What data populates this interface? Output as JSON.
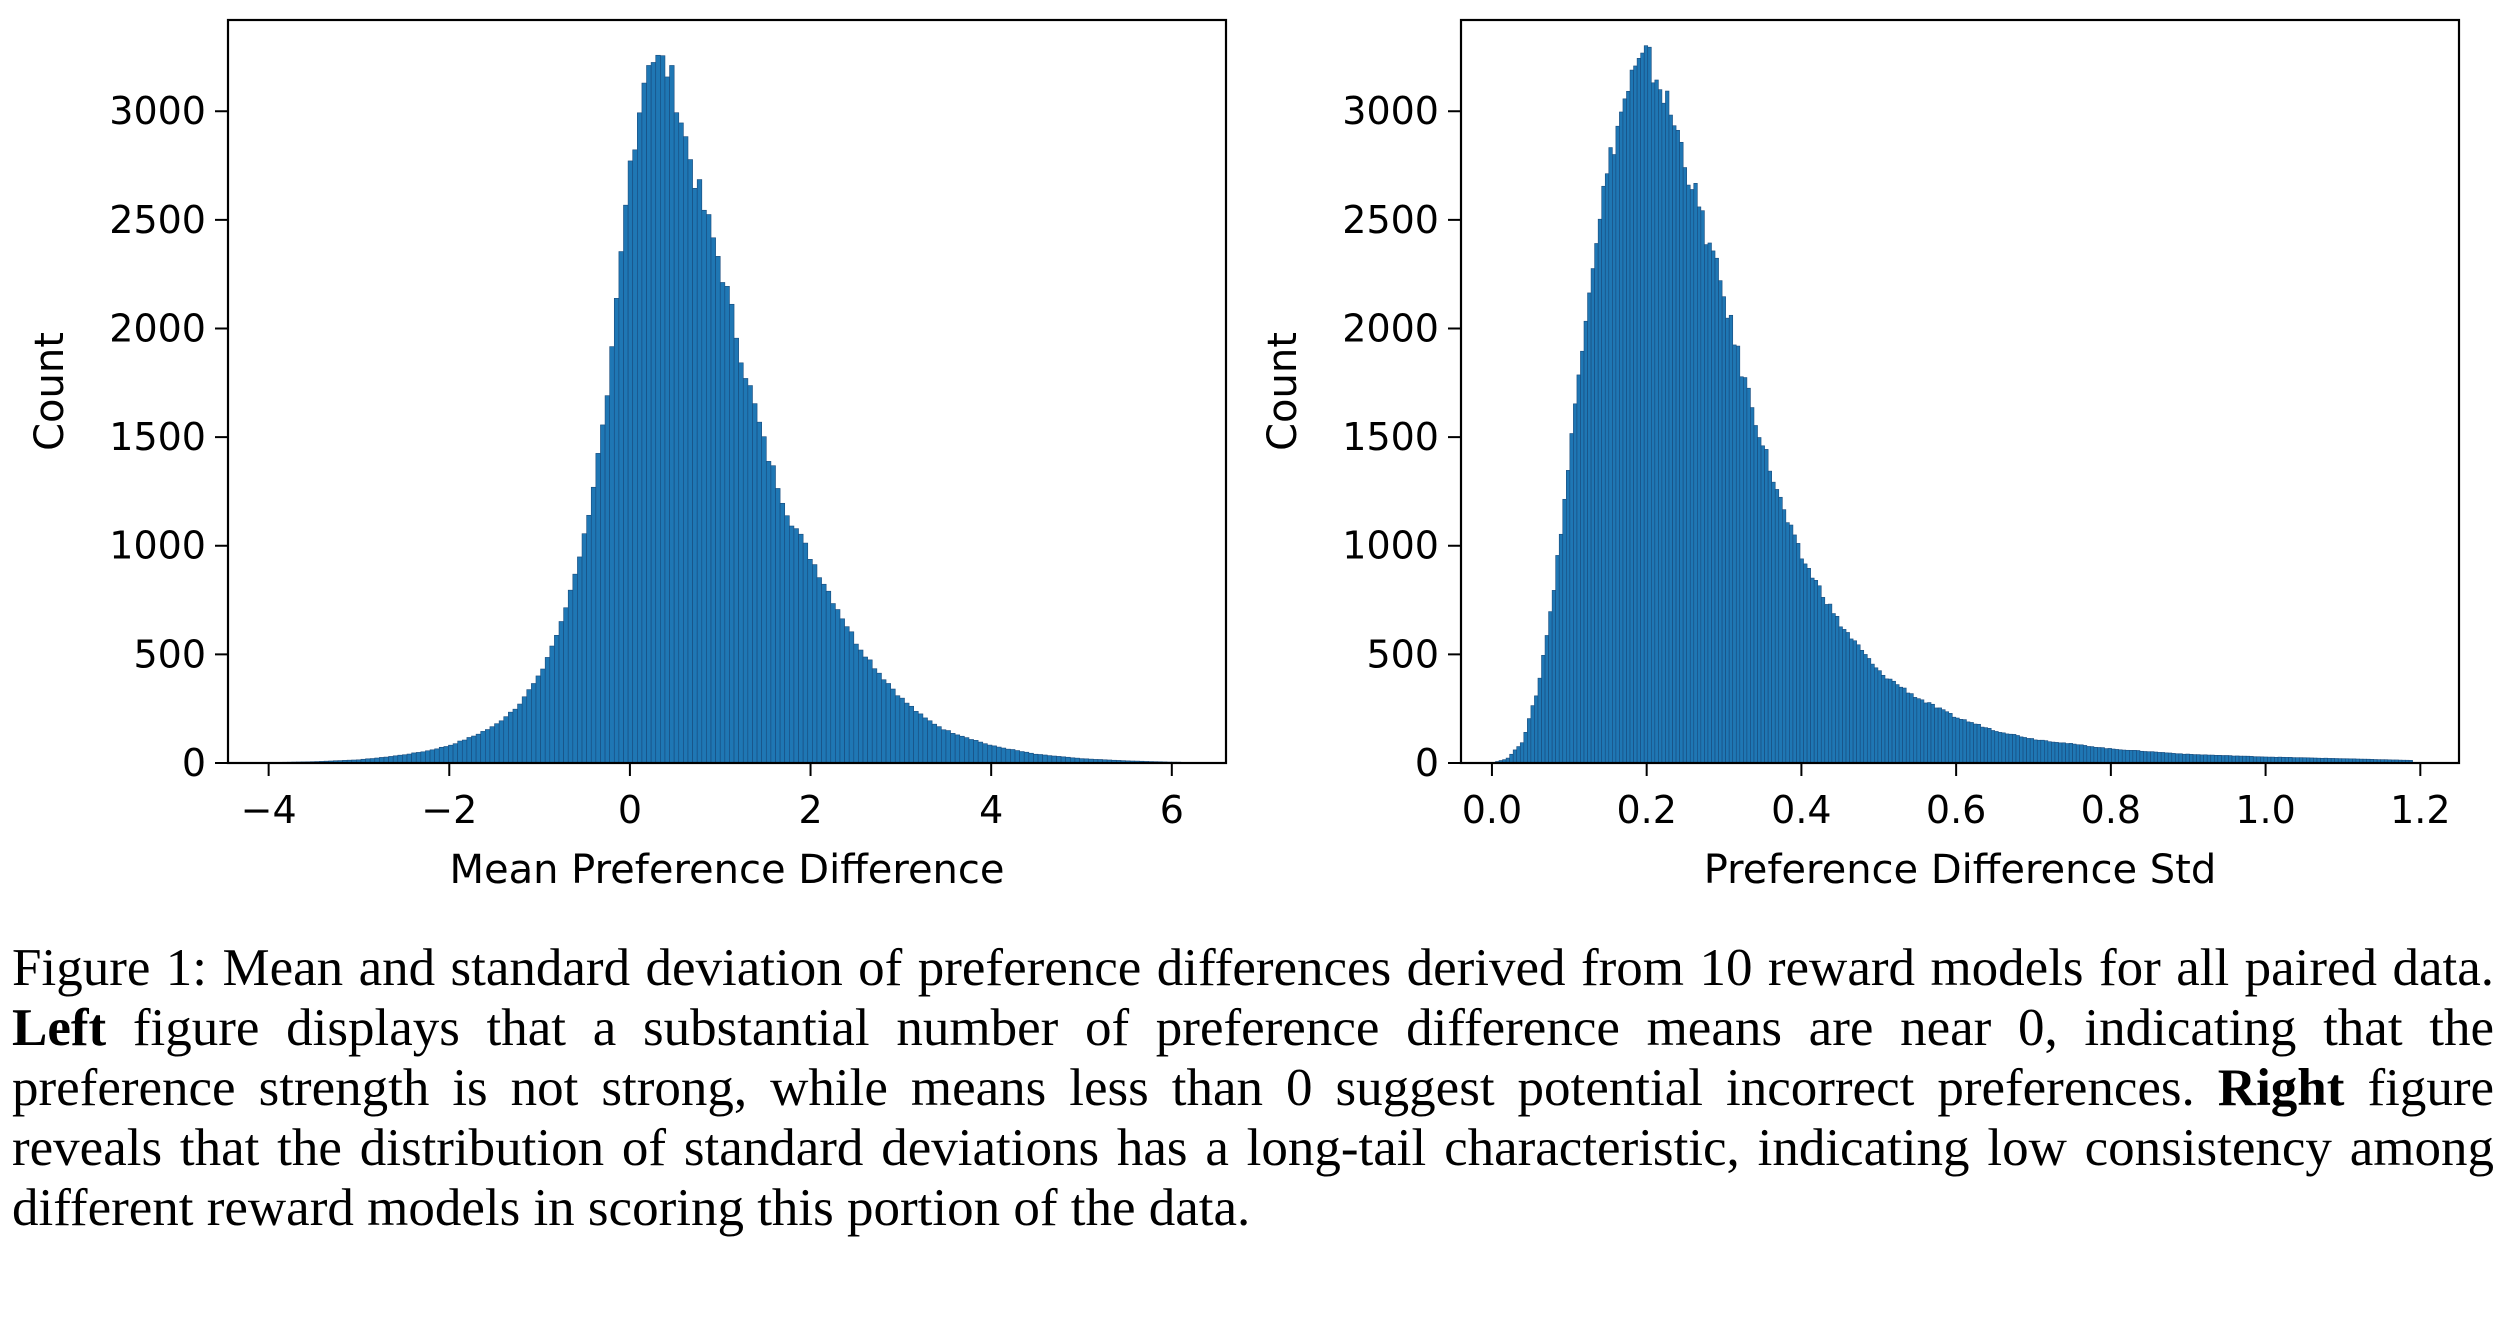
{
  "figure": {
    "caption": {
      "lead": "Figure 1: Mean and standard deviation of preference differences derived from 10 reward models for all paired data.",
      "left_label": "Left",
      "left_text": "figure displays that a substantial number of preference difference means are near 0, indicating that the preference strength is not strong, while means less than 0 suggest potential incorrect preferences.",
      "right_label": "Right",
      "right_text": "figure reveals that the distribution of standard deviations has a long-tail characteristic, indicating low consistency among different reward models in scoring this portion of the data."
    },
    "bar_color": "#1f77b4"
  },
  "chart_data": [
    {
      "type": "bar",
      "xlabel": "Mean Preference Difference",
      "ylabel": "Count",
      "xlim": [
        -4.45,
        6.6
      ],
      "ylim": [
        0,
        3420
      ],
      "xticks": [
        -4,
        -2,
        0,
        2,
        4,
        6
      ],
      "xtick_labels": [
        "−4",
        "−2",
        "0",
        "2",
        "4",
        "6"
      ],
      "yticks": [
        0,
        500,
        1000,
        1500,
        2000,
        2500,
        3000
      ],
      "ytick_labels": [
        "0",
        "500",
        "1000",
        "1500",
        "2000",
        "2500",
        "3000"
      ],
      "bin_range": [
        -4.1,
        6.1
      ],
      "bin_count": 200,
      "bins": [
        [
          -4.0,
          2
        ],
        [
          -3.5,
          6
        ],
        [
          -3.0,
          15
        ],
        [
          -2.75,
          25
        ],
        [
          -2.5,
          38
        ],
        [
          -2.25,
          55
        ],
        [
          -2.0,
          80
        ],
        [
          -1.75,
          120
        ],
        [
          -1.5,
          170
        ],
        [
          -1.25,
          260
        ],
        [
          -1.0,
          400
        ],
        [
          -0.75,
          650
        ],
        [
          -0.5,
          1050
        ],
        [
          -0.25,
          1650
        ],
        [
          0.0,
          2750
        ],
        [
          0.1,
          3000
        ],
        [
          0.2,
          3260
        ],
        [
          0.3,
          3230
        ],
        [
          0.4,
          3210
        ],
        [
          0.5,
          3100
        ],
        [
          0.6,
          2900
        ],
        [
          0.75,
          2650
        ],
        [
          1.0,
          2300
        ],
        [
          1.25,
          1850
        ],
        [
          1.5,
          1450
        ],
        [
          1.75,
          1150
        ],
        [
          2.0,
          950
        ],
        [
          2.25,
          750
        ],
        [
          2.5,
          560
        ],
        [
          2.75,
          420
        ],
        [
          3.0,
          300
        ],
        [
          3.25,
          210
        ],
        [
          3.5,
          150
        ],
        [
          4.0,
          80
        ],
        [
          4.5,
          40
        ],
        [
          5.0,
          20
        ],
        [
          5.5,
          10
        ],
        [
          6.0,
          4
        ]
      ]
    },
    {
      "type": "bar",
      "xlabel": "Preference Difference Std",
      "ylabel": "Count",
      "xlim": [
        -0.04,
        1.25
      ],
      "ylim": [
        0,
        3420
      ],
      "xticks": [
        0.0,
        0.2,
        0.4,
        0.6,
        0.8,
        1.0,
        1.2
      ],
      "xtick_labels": [
        "0.0",
        "0.2",
        "0.4",
        "0.6",
        "0.8",
        "1.0",
        "1.2"
      ],
      "yticks": [
        0,
        500,
        1000,
        1500,
        2000,
        2500,
        3000
      ],
      "ytick_labels": [
        "0",
        "500",
        "1000",
        "1500",
        "2000",
        "2500",
        "3000"
      ],
      "bin_range": [
        0.0,
        1.19
      ],
      "bin_count": 260,
      "bins": [
        [
          0.0,
          0
        ],
        [
          0.02,
          20
        ],
        [
          0.04,
          100
        ],
        [
          0.06,
          350
        ],
        [
          0.08,
          800
        ],
        [
          0.1,
          1400
        ],
        [
          0.12,
          2050
        ],
        [
          0.14,
          2550
        ],
        [
          0.16,
          2900
        ],
        [
          0.18,
          3150
        ],
        [
          0.2,
          3250
        ],
        [
          0.22,
          3100
        ],
        [
          0.24,
          2900
        ],
        [
          0.26,
          2650
        ],
        [
          0.28,
          2400
        ],
        [
          0.3,
          2150
        ],
        [
          0.32,
          1850
        ],
        [
          0.34,
          1600
        ],
        [
          0.36,
          1350
        ],
        [
          0.38,
          1130
        ],
        [
          0.4,
          950
        ],
        [
          0.45,
          640
        ],
        [
          0.5,
          420
        ],
        [
          0.55,
          300
        ],
        [
          0.6,
          210
        ],
        [
          0.65,
          150
        ],
        [
          0.7,
          110
        ],
        [
          0.8,
          65
        ],
        [
          0.9,
          40
        ],
        [
          1.0,
          28
        ],
        [
          1.1,
          20
        ],
        [
          1.19,
          12
        ]
      ]
    }
  ]
}
